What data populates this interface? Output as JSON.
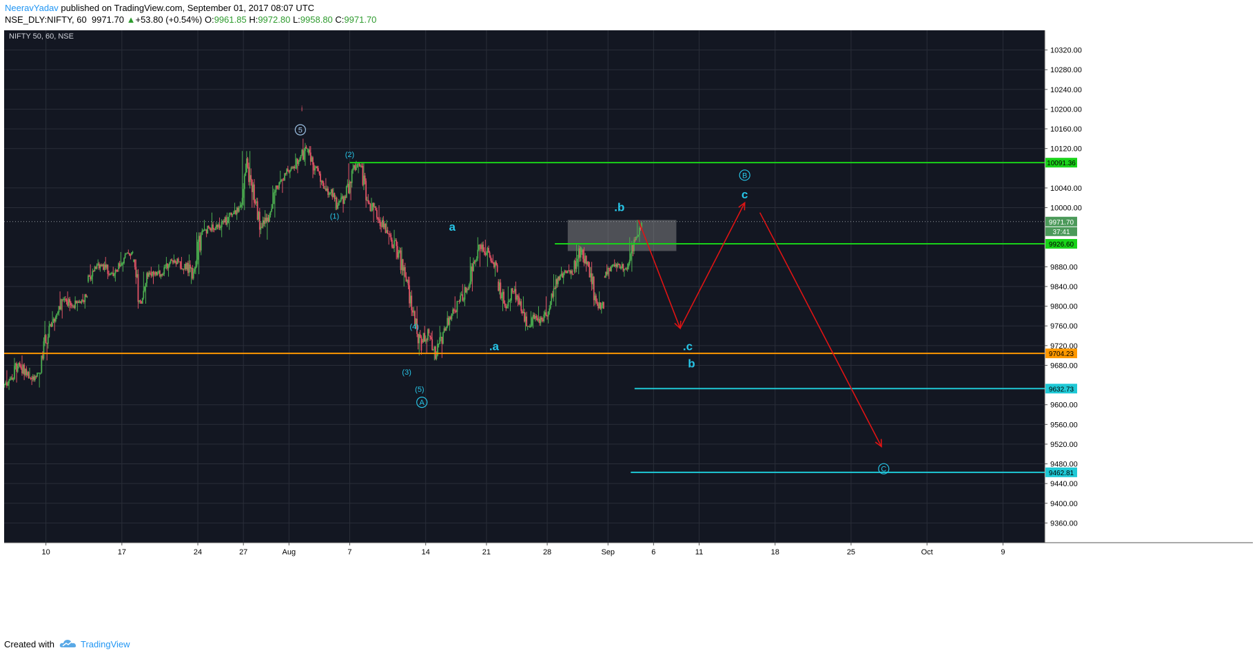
{
  "header": {
    "author": "NeeravYadav",
    "published_text": " published on TradingView.com, September 01, 2017 08:07 UTC",
    "symbol": "NSE_DLY:NIFTY, 60",
    "last": "9971.70",
    "change": "+53.80 (+0.54%)",
    "o_label": "O:",
    "o_value": "9961.85",
    "h_label": "H:",
    "h_value": "9972.80",
    "l_label": "L:",
    "l_value": "9958.80",
    "c_label": "C:",
    "c_value": "9971.70"
  },
  "footer": {
    "created_with": "Created with",
    "brand": "TradingView"
  },
  "colors": {
    "background": "#131722",
    "grid": "#2a2e39",
    "bull": "#4caf50",
    "bear": "#e05265",
    "green_line": "#19d319",
    "orange_line": "#ff9800",
    "cyan_line": "#1fc9d6",
    "arrow": "#e01414",
    "wave_label": "#27c6e8",
    "price_axis_bg": "#ffffff"
  },
  "chart_data": {
    "type": "candlestick",
    "title": "NIFTY 50, 60, NSE",
    "y_range": [
      9320,
      10360
    ],
    "y_ticks": [
      10320,
      10280,
      10240,
      10200,
      10160,
      10120,
      10040,
      10000,
      9880,
      9840,
      9800,
      9760,
      9720,
      9680,
      9600,
      9560,
      9520,
      9480,
      9440,
      9400,
      9360
    ],
    "y_tick_labels": [
      "10320.00",
      "10280.00",
      "10240.00",
      "10200.00",
      "10160.00",
      "10120.00",
      "10040.00",
      "10000.00",
      "9880.00",
      "9840.00",
      "9800.00",
      "9760.00",
      "9720.00",
      "9680.00",
      "9600.00",
      "9560.00",
      "9520.00",
      "9480.00",
      "9440.00",
      "9400.00",
      "9360.00"
    ],
    "x_ticks": [
      {
        "label": "10",
        "slot": 5.5
      },
      {
        "label": "17",
        "slot": 15.5
      },
      {
        "label": "24",
        "slot": 25.5
      },
      {
        "label": "27",
        "slot": 31.5
      },
      {
        "label": "Aug",
        "slot": 37.5
      },
      {
        "label": "7",
        "slot": 45.5
      },
      {
        "label": "14",
        "slot": 55.5
      },
      {
        "label": "21",
        "slot": 63.5
      },
      {
        "label": "28",
        "slot": 71.5
      },
      {
        "label": "Sep",
        "slot": 79.5
      },
      {
        "label": "6",
        "slot": 85.5
      },
      {
        "label": "11",
        "slot": 91.5
      },
      {
        "label": "18",
        "slot": 101.5
      },
      {
        "label": "25",
        "slot": 111.5
      },
      {
        "label": "Oct",
        "slot": 121.5
      },
      {
        "label": "9",
        "slot": 131.5
      }
    ],
    "x_slots": 137,
    "daily_ohlc": [
      [
        9640,
        9670,
        9630,
        9655
      ],
      [
        9655,
        9695,
        9645,
        9685
      ],
      [
        9685,
        9700,
        9650,
        9660
      ],
      [
        9660,
        9675,
        9640,
        9650
      ],
      [
        9650,
        9665,
        9635,
        9700
      ],
      [
        9700,
        9770,
        9690,
        9760
      ],
      [
        9760,
        9790,
        9750,
        9785
      ],
      [
        9785,
        9830,
        9775,
        9815
      ],
      [
        9815,
        9830,
        9790,
        9800
      ],
      [
        9800,
        9820,
        9790,
        9810
      ],
      [
        9810,
        9825,
        9795,
        9820
      ],
      [
        9850,
        9885,
        9845,
        9880
      ],
      [
        9880,
        9895,
        9870,
        9885
      ],
      [
        9885,
        9900,
        9855,
        9865
      ],
      [
        9865,
        9880,
        9850,
        9870
      ],
      [
        9875,
        9910,
        9870,
        9905
      ],
      [
        9905,
        9915,
        9895,
        9910
      ],
      [
        9890,
        9895,
        9795,
        9810
      ],
      [
        9810,
        9870,
        9805,
        9860
      ],
      [
        9860,
        9880,
        9845,
        9870
      ],
      [
        9870,
        9885,
        9855,
        9865
      ],
      [
        9865,
        9900,
        9860,
        9895
      ],
      [
        9895,
        9905,
        9880,
        9890
      ],
      [
        9890,
        9900,
        9865,
        9875
      ],
      [
        9875,
        9905,
        9845,
        9870
      ],
      [
        9870,
        9950,
        9865,
        9945
      ],
      [
        9945,
        9975,
        9940,
        9960
      ],
      [
        9960,
        9990,
        9950,
        9965
      ],
      [
        9965,
        9980,
        9940,
        9970
      ],
      [
        9970,
        9990,
        9955,
        9985
      ],
      [
        9985,
        10010,
        9975,
        10000
      ],
      [
        10000,
        10115,
        9995,
        10100
      ],
      [
        10100,
        10115,
        10000,
        10010
      ],
      [
        10010,
        10020,
        9940,
        9960
      ],
      [
        9960,
        9995,
        9935,
        9985
      ],
      [
        9985,
        10045,
        9980,
        10040
      ],
      [
        10040,
        10075,
        10030,
        10070
      ],
      [
        10070,
        10085,
        10060,
        10080
      ],
      [
        10080,
        10110,
        10070,
        10100
      ],
      [
        10100,
        10140,
        10085,
        10120
      ],
      [
        10110,
        10125,
        10060,
        10080
      ],
      [
        10080,
        10085,
        10040,
        10050
      ],
      [
        10050,
        10060,
        10020,
        10030
      ],
      [
        10030,
        10040,
        9995,
        10005
      ],
      [
        10005,
        10030,
        9990,
        10020
      ],
      [
        10020,
        10090,
        10015,
        10080
      ],
      [
        10080,
        10095,
        10070,
        10085
      ],
      [
        10085,
        10090,
        10000,
        10010
      ],
      [
        10010,
        10020,
        9970,
        9995
      ],
      [
        9995,
        10005,
        9950,
        9960
      ],
      [
        9960,
        9975,
        9925,
        9935
      ],
      [
        9935,
        9955,
        9895,
        9910
      ],
      [
        9910,
        9920,
        9840,
        9850
      ],
      [
        9850,
        9860,
        9780,
        9790
      ],
      [
        9790,
        9800,
        9700,
        9710
      ],
      [
        9730,
        9760,
        9705,
        9745
      ],
      [
        9740,
        9750,
        9690,
        9700
      ],
      [
        9700,
        9760,
        9695,
        9755
      ],
      [
        9755,
        9790,
        9750,
        9785
      ],
      [
        9785,
        9820,
        9775,
        9810
      ],
      [
        9810,
        9845,
        9800,
        9835
      ],
      [
        9835,
        9900,
        9830,
        9890
      ],
      [
        9890,
        9940,
        9880,
        9925
      ],
      [
        9925,
        9935,
        9880,
        9900
      ],
      [
        9900,
        9905,
        9860,
        9870
      ],
      [
        9850,
        9855,
        9790,
        9800
      ],
      [
        9800,
        9840,
        9790,
        9830
      ],
      [
        9830,
        9850,
        9800,
        9810
      ],
      [
        9810,
        9820,
        9750,
        9760
      ],
      [
        9760,
        9790,
        9755,
        9780
      ],
      [
        9780,
        9800,
        9760,
        9770
      ],
      [
        9770,
        9820,
        9765,
        9810
      ],
      [
        9810,
        9865,
        9800,
        9860
      ],
      [
        9860,
        9880,
        9845,
        9870
      ],
      [
        9870,
        9885,
        9855,
        9865
      ],
      [
        9870,
        9925,
        9865,
        9920
      ],
      [
        9910,
        9920,
        9870,
        9880
      ],
      [
        9880,
        9890,
        9800,
        9810
      ],
      [
        9810,
        9830,
        9785,
        9795
      ],
      [
        9860,
        9885,
        9855,
        9880
      ],
      [
        9880,
        9895,
        9870,
        9885
      ],
      [
        9885,
        9890,
        9860,
        9875
      ],
      [
        9875,
        9940,
        9870,
        9935
      ],
      [
        9935,
        9975,
        9930,
        9970
      ]
    ],
    "horizontal_levels": [
      {
        "price": 10091.36,
        "label": "10091.36",
        "color": "green",
        "from_slot": 45.5
      },
      {
        "price": 9926.6,
        "label": "9926.60",
        "color": "green",
        "from_slot": 72.5
      },
      {
        "price": 9704.23,
        "label": "9704.23",
        "color": "orange",
        "from_slot": 0
      },
      {
        "price": 9632.73,
        "label": "9632.73",
        "color": "cyan",
        "from_slot": 83
      },
      {
        "price": 9462.81,
        "label": "9462.81",
        "color": "cyan",
        "from_slot": 82.5
      }
    ],
    "current_price": {
      "price": 9971.7,
      "label": "9971.70",
      "countdown": "37:41"
    },
    "zone": {
      "from_slot": 74.2,
      "to_slot": 88.5,
      "top": 9975,
      "bottom": 9912
    },
    "arrows": [
      {
        "from": [
          83.5,
          9975
        ],
        "to": [
          89,
          9755
        ]
      },
      {
        "from": [
          89,
          9755
        ],
        "to": [
          97.5,
          10010
        ]
      },
      {
        "from": [
          99.5,
          9990
        ],
        "to": [
          115.5,
          9515
        ]
      }
    ],
    "wave_labels": [
      {
        "text": "5",
        "circled": true,
        "slot": 39,
        "price": 10158,
        "color": "#9fc5e8"
      },
      {
        "text": "i",
        "circled": false,
        "slot": 39.2,
        "price": 10203,
        "color": "#e05265"
      },
      {
        "text": "(2)",
        "circled": false,
        "slot": 45.5,
        "price": 10110,
        "color": "#27c6e8"
      },
      {
        "text": "(1)",
        "circled": false,
        "slot": 43.5,
        "price": 9985,
        "color": "#27c6e8"
      },
      {
        "text": "a",
        "circled": false,
        "slot": 59,
        "price": 9960,
        "color": "#27c6e8",
        "bold": true
      },
      {
        "text": ".b",
        "circled": false,
        "slot": 81,
        "price": 10000,
        "color": "#27c6e8",
        "bold": true
      },
      {
        "text": "(4)",
        "circled": false,
        "slot": 54,
        "price": 9760,
        "color": "#27c6e8"
      },
      {
        "text": "(3)",
        "circled": false,
        "slot": 53,
        "price": 9668,
        "color": "#27c6e8"
      },
      {
        "text": "(5)",
        "circled": false,
        "slot": 54.7,
        "price": 9633,
        "color": "#27c6e8"
      },
      {
        "text": "A",
        "circled": true,
        "slot": 55,
        "price": 9605,
        "color": "#27c6e8"
      },
      {
        "text": ".a",
        "circled": false,
        "slot": 64.5,
        "price": 9718,
        "color": "#27c6e8",
        "bold": true
      },
      {
        "text": ".c",
        "circled": false,
        "slot": 90,
        "price": 9718,
        "color": "#27c6e8",
        "bold": true
      },
      {
        "text": "b",
        "circled": false,
        "slot": 90.5,
        "price": 9683,
        "color": "#27c6e8",
        "bold": true
      },
      {
        "text": "B",
        "circled": true,
        "slot": 97.5,
        "price": 10066,
        "color": "#27c6e8"
      },
      {
        "text": "c",
        "circled": false,
        "slot": 97.5,
        "price": 10026,
        "color": "#27c6e8",
        "bold": true
      },
      {
        "text": "C",
        "circled": true,
        "slot": 115.8,
        "price": 9470,
        "color": "#27c6e8"
      }
    ]
  }
}
